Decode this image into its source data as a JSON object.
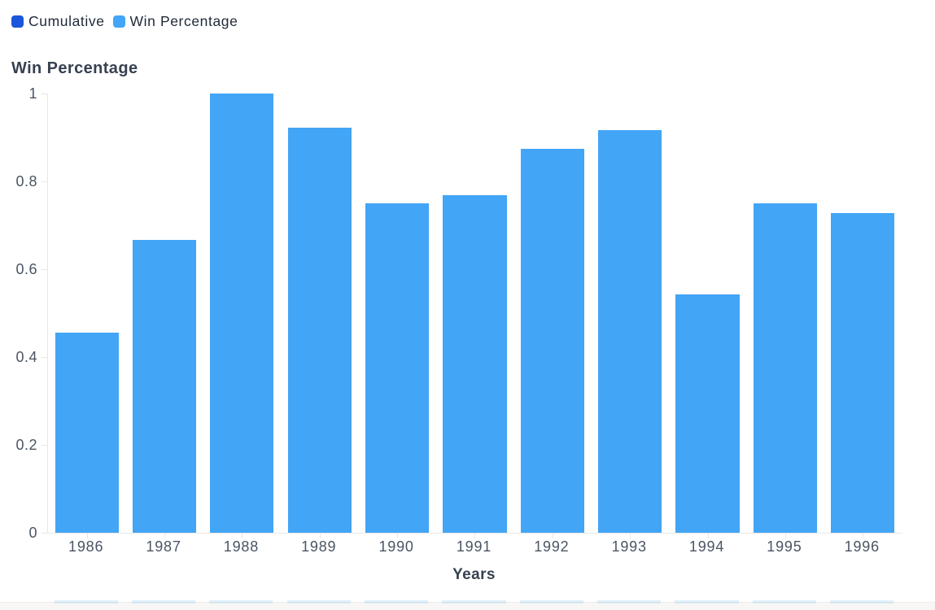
{
  "legend": {
    "items": [
      {
        "label": "Cumulative",
        "color": "#1A56DB"
      },
      {
        "label": "Win Percentage",
        "color": "#42A5F5"
      }
    ]
  },
  "chart_data": {
    "type": "bar",
    "title": "Win Percentage",
    "xlabel": "Years",
    "ylabel": "",
    "categories": [
      "1986",
      "1987",
      "1988",
      "1989",
      "1990",
      "1991",
      "1992",
      "1993",
      "1994",
      "1995",
      "1996"
    ],
    "series": [
      {
        "name": "Win Percentage",
        "color": "#42A5F5",
        "values": [
          0.455,
          0.667,
          1,
          0.923,
          0.75,
          0.769,
          0.875,
          0.917,
          0.542,
          0.75,
          0.727
        ]
      }
    ],
    "ylim": [
      0,
      1
    ],
    "yticks": [
      1,
      0.8,
      0.6,
      0.4,
      0.2,
      0
    ],
    "ytick_labels": [
      "1",
      "0.8",
      "0.6",
      "0.4",
      "0.2",
      "0"
    ],
    "grid": false,
    "legend_position": "top-left",
    "colors": {
      "bar": "#42A5F5",
      "axis_line": "#e7e7e7",
      "tick_label": "#4b5563",
      "title_text": "#374151",
      "legend_text": "#1f2937"
    }
  }
}
